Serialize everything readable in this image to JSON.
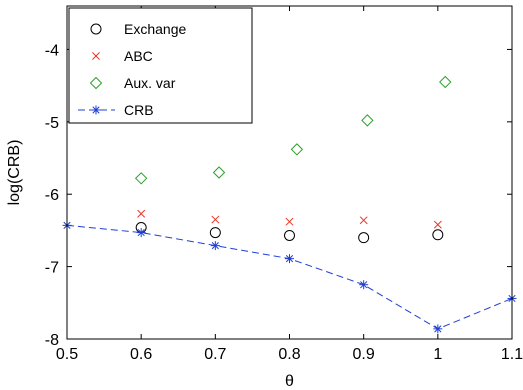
{
  "chart_data": {
    "type": "scatter",
    "title": "",
    "xlabel": "θ",
    "ylabel": "log(CRB)",
    "xlim": [
      0.5,
      1.1
    ],
    "ylim": [
      -8,
      -3.4
    ],
    "x_ticks": [
      0.5,
      0.6,
      0.7,
      0.8,
      0.9,
      1.0,
      1.1
    ],
    "x_tick_labels": [
      "0.5",
      "0.6",
      "0.7",
      "0.8",
      "0.9",
      "1",
      "1.1"
    ],
    "y_ticks": [
      -8,
      -7,
      -6,
      -5,
      -4
    ],
    "y_tick_labels": [
      "-8",
      "-7",
      "-6",
      "-5",
      "-4"
    ],
    "grid": false,
    "legend_position": "top-left",
    "series": [
      {
        "name": "Exchange",
        "marker": "circle",
        "line": "none",
        "color": "#000000",
        "x": [
          0.6,
          0.7,
          0.8,
          0.9,
          1.0
        ],
        "y": [
          -6.46,
          -6.53,
          -6.57,
          -6.6,
          -6.56
        ]
      },
      {
        "name": "ABC",
        "marker": "x",
        "line": "none",
        "color": "#e8392c",
        "x": [
          0.6,
          0.7,
          0.8,
          0.9,
          1.0
        ],
        "y": [
          -6.27,
          -6.35,
          -6.38,
          -6.36,
          -6.42
        ]
      },
      {
        "name": "Aux. var",
        "marker": "diamond",
        "line": "none",
        "color": "#2ca02c",
        "x": [
          0.6,
          0.705,
          0.81,
          0.905,
          1.01
        ],
        "y": [
          -5.78,
          -5.7,
          -5.38,
          -4.98,
          -4.45
        ]
      },
      {
        "name": "CRB",
        "marker": "asterisk",
        "line": "dashed",
        "color": "#1f3fd6",
        "x": [
          0.5,
          0.6,
          0.7,
          0.8,
          0.9,
          1.0,
          1.1
        ],
        "y": [
          -6.43,
          -6.53,
          -6.71,
          -6.89,
          -7.25,
          -7.86,
          -7.44
        ]
      }
    ]
  }
}
